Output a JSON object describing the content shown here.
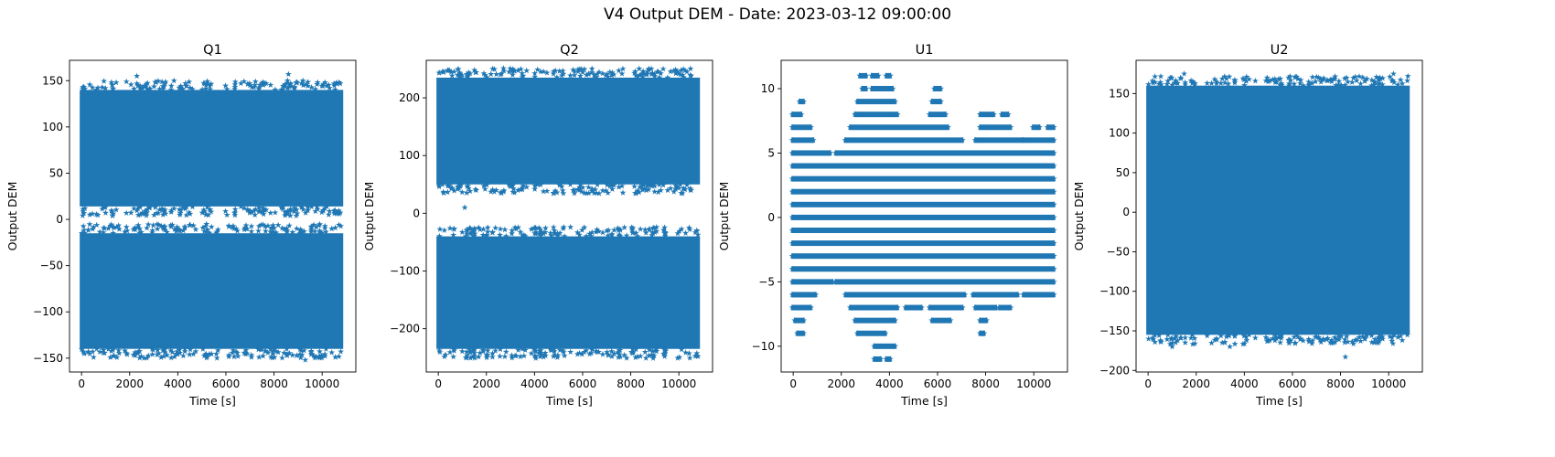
{
  "figure": {
    "title": "V4 Output DEM - Date: 2023-03-12 09:00:00"
  },
  "chart_data": [
    {
      "type": "scatter",
      "title": "Q1",
      "xlabel": "Time [s]",
      "ylabel": "Output DEM",
      "marker": "star",
      "color": "#1f77b4",
      "xlim": [
        -500,
        11400
      ],
      "ylim": [
        -165,
        172
      ],
      "xticks": [
        0,
        2000,
        4000,
        6000,
        8000,
        10000
      ],
      "yticks": [
        -150,
        -100,
        -50,
        0,
        50,
        100,
        150
      ],
      "x_range": [
        0,
        10800
      ],
      "bands": [
        {
          "y_min": 14,
          "y_max": 140
        },
        {
          "y_min": -140,
          "y_max": -15
        }
      ],
      "outliers": [
        [
          2300,
          155
        ],
        [
          8600,
          157
        ],
        [
          9200,
          150
        ],
        [
          1000,
          7
        ],
        [
          6500,
          -148
        ],
        [
          9300,
          -152
        ],
        [
          2600,
          -150
        ]
      ]
    },
    {
      "type": "scatter",
      "title": "Q2",
      "xlabel": "Time [s]",
      "ylabel": "Output DEM",
      "marker": "star",
      "color": "#1f77b4",
      "xlim": [
        -500,
        11400
      ],
      "ylim": [
        -275,
        265
      ],
      "xticks": [
        0,
        2000,
        4000,
        6000,
        8000,
        10000
      ],
      "yticks": [
        -200,
        -100,
        0,
        100,
        200
      ],
      "x_range": [
        0,
        10800
      ],
      "bands": [
        {
          "y_min": 50,
          "y_max": 235
        },
        {
          "y_min": -235,
          "y_max": -40
        }
      ],
      "outliers": [
        [
          1500,
          248
        ],
        [
          9100,
          245
        ],
        [
          1100,
          10
        ],
        [
          8200,
          -250
        ],
        [
          300,
          -245
        ]
      ]
    },
    {
      "type": "scatter",
      "title": "U1",
      "xlabel": "Time [s]",
      "ylabel": "Output DEM",
      "marker": "star",
      "color": "#1f77b4",
      "xlim": [
        -500,
        11400
      ],
      "ylim": [
        -12,
        12.2
      ],
      "xticks": [
        0,
        2000,
        4000,
        6000,
        8000,
        10000
      ],
      "yticks": [
        -10,
        -5,
        0,
        5,
        10
      ],
      "x_range": [
        0,
        10800
      ],
      "levels": [
        {
          "y": 11,
          "segments": [
            [
              2800,
              3000
            ],
            [
              3300,
              3500
            ],
            [
              3900,
              4000
            ]
          ]
        },
        {
          "y": 10,
          "segments": [
            [
              2900,
              3000
            ],
            [
              3300,
              4100
            ],
            [
              5900,
              6100
            ]
          ]
        },
        {
          "y": 9,
          "segments": [
            [
              300,
              400
            ],
            [
              2700,
              4200
            ],
            [
              5800,
              6100
            ]
          ]
        },
        {
          "y": 8,
          "segments": [
            [
              0,
              300
            ],
            [
              2600,
              4300
            ],
            [
              5700,
              6300
            ],
            [
              7800,
              8300
            ],
            [
              8700,
              8900
            ]
          ]
        },
        {
          "y": 7,
          "segments": [
            [
              0,
              700
            ],
            [
              2400,
              6400
            ],
            [
              7800,
              9000
            ],
            [
              10000,
              10200
            ],
            [
              10600,
              10800
            ]
          ]
        },
        {
          "y": 6,
          "segments": [
            [
              0,
              800
            ],
            [
              2200,
              7000
            ],
            [
              7600,
              9500
            ],
            [
              9600,
              10800
            ]
          ]
        },
        {
          "y": 5,
          "segments": [
            [
              0,
              1500
            ],
            [
              1800,
              10800
            ]
          ]
        },
        {
          "y": 4,
          "segments": [
            [
              0,
              10800
            ]
          ]
        },
        {
          "y": 3,
          "segments": [
            [
              0,
              10800
            ]
          ]
        },
        {
          "y": 2,
          "segments": [
            [
              0,
              10800
            ]
          ]
        },
        {
          "y": 1,
          "segments": [
            [
              0,
              10800
            ]
          ]
        },
        {
          "y": 0,
          "segments": [
            [
              0,
              10800
            ]
          ]
        },
        {
          "y": -1,
          "segments": [
            [
              0,
              10800
            ]
          ]
        },
        {
          "y": -2,
          "segments": [
            [
              0,
              10800
            ]
          ]
        },
        {
          "y": -3,
          "segments": [
            [
              0,
              10800
            ]
          ]
        },
        {
          "y": -4,
          "segments": [
            [
              0,
              10800
            ]
          ]
        },
        {
          "y": -5,
          "segments": [
            [
              0,
              1600
            ],
            [
              1800,
              10800
            ]
          ]
        },
        {
          "y": -6,
          "segments": [
            [
              0,
              900
            ],
            [
              2200,
              7100
            ],
            [
              7500,
              9300
            ],
            [
              9600,
              10800
            ]
          ]
        },
        {
          "y": -7,
          "segments": [
            [
              0,
              700
            ],
            [
              2400,
              4300
            ],
            [
              4700,
              5300
            ],
            [
              5700,
              7000
            ],
            [
              7600,
              8400
            ],
            [
              8600,
              9000
            ]
          ]
        },
        {
          "y": -8,
          "segments": [
            [
              100,
              400
            ],
            [
              2600,
              4200
            ],
            [
              5800,
              6500
            ],
            [
              7800,
              8000
            ]
          ]
        },
        {
          "y": -9,
          "segments": [
            [
              200,
              400
            ],
            [
              2700,
              3800
            ],
            [
              7800,
              7900
            ]
          ]
        },
        {
          "y": -10,
          "segments": [
            [
              3400,
              4200
            ]
          ]
        },
        {
          "y": -11,
          "segments": [
            [
              3400,
              3600
            ],
            [
              3900,
              4000
            ]
          ]
        }
      ]
    },
    {
      "type": "scatter",
      "title": "U2",
      "xlabel": "Time [s]",
      "ylabel": "Output DEM",
      "marker": "star",
      "color": "#1f77b4",
      "xlim": [
        -500,
        11400
      ],
      "ylim": [
        -202,
        192
      ],
      "xticks": [
        0,
        2000,
        4000,
        6000,
        8000,
        10000
      ],
      "yticks": [
        -200,
        -150,
        -100,
        -50,
        0,
        50,
        100,
        150
      ],
      "x_range": [
        0,
        10800
      ],
      "bands": [
        {
          "y_min": -155,
          "y_max": 160
        }
      ],
      "outliers": [
        [
          1500,
          175
        ],
        [
          10200,
          175
        ],
        [
          10800,
          172
        ],
        [
          8200,
          -183
        ],
        [
          3400,
          -170
        ],
        [
          1000,
          -170
        ]
      ]
    }
  ]
}
